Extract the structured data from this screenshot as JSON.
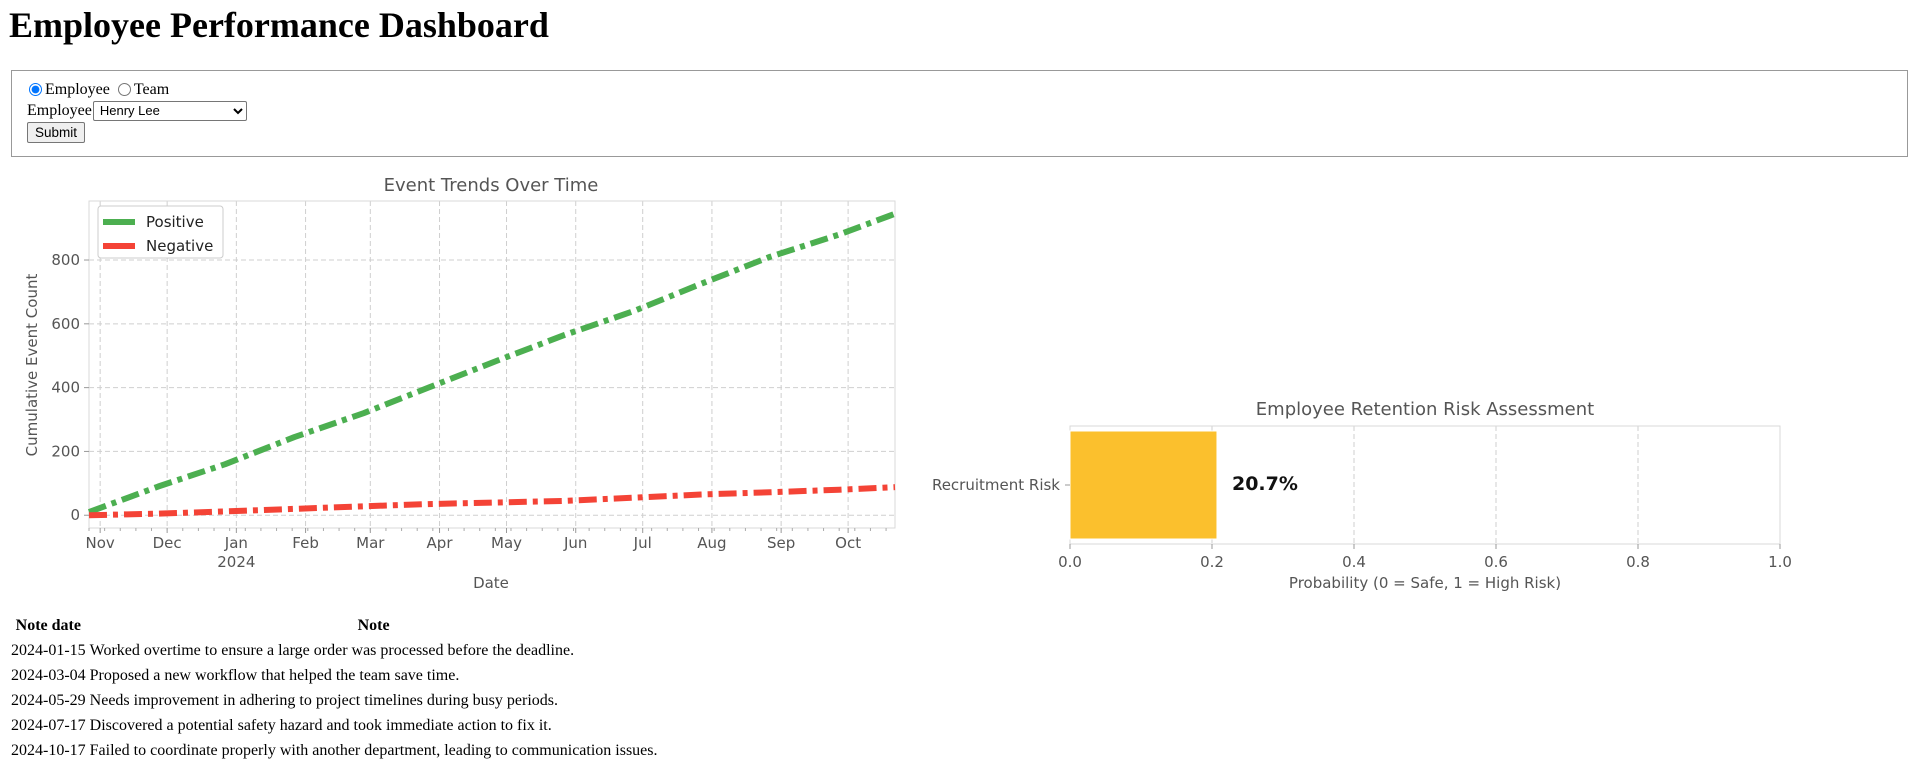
{
  "page": {
    "title": "Employee Performance Dashboard"
  },
  "form": {
    "mode_options": [
      {
        "label": "Employee",
        "checked": true
      },
      {
        "label": "Team",
        "checked": false
      }
    ],
    "employee_label": "Employee",
    "employee_selected": "Henry Lee",
    "submit_label": "Submit"
  },
  "trend_chart": {
    "title": "Event Trends Over Time",
    "xlabel": "Date",
    "ylabel": "Cumulative Event Count",
    "y_ticks": [
      0,
      200,
      400,
      600,
      800
    ],
    "x_ticks": [
      "Nov",
      "Dec",
      "Jan",
      "Feb",
      "Mar",
      "Apr",
      "May",
      "Jun",
      "Jul",
      "Aug",
      "Sep",
      "Oct"
    ],
    "x_year_label": "2024"
  },
  "risk_chart": {
    "title": "Employee Retention Risk Assessment",
    "xlabel": "Probability (0 = Safe, 1 = High Risk)",
    "category": "Recruitment Risk",
    "value_label": "20.7%",
    "x_ticks": [
      "0.0",
      "0.2",
      "0.4",
      "0.6",
      "0.8",
      "1.0"
    ]
  },
  "chart_data": [
    {
      "type": "line",
      "title": "Event Trends Over Time",
      "xlabel": "Date",
      "ylabel": "Cumulative Event Count",
      "xlim": [
        "2023-10-27",
        "2024-10-22"
      ],
      "ylim": [
        -40,
        985
      ],
      "grid": true,
      "legend": "top-left",
      "x": [
        "2023-10-27",
        "2023-11-27",
        "2023-12-27",
        "2024-01-27",
        "2024-02-27",
        "2024-03-27",
        "2024-04-27",
        "2024-05-27",
        "2024-06-27",
        "2024-07-27",
        "2024-08-27",
        "2024-09-27",
        "2024-10-22"
      ],
      "series": [
        {
          "name": "Positive",
          "color": "#4caf50",
          "values": [
            10,
            90,
            160,
            245,
            320,
            400,
            485,
            565,
            640,
            725,
            810,
            880,
            945
          ]
        },
        {
          "name": "Negative",
          "color": "#f44336",
          "values": [
            0,
            5,
            12,
            20,
            28,
            35,
            40,
            45,
            55,
            65,
            72,
            80,
            88
          ]
        }
      ]
    },
    {
      "type": "bar",
      "orientation": "horizontal",
      "title": "Employee Retention Risk Assessment",
      "xlabel": "Probability (0 = Safe, 1 = High Risk)",
      "categories": [
        "Recruitment Risk"
      ],
      "values": [
        0.207
      ],
      "xlim": [
        0,
        1
      ],
      "grid": true,
      "color": "#fbc02d"
    }
  ],
  "notes": {
    "headers": [
      "Note date",
      "Note"
    ],
    "rows": [
      [
        "2024-01-15",
        "Worked overtime to ensure a large order was processed before the deadline."
      ],
      [
        "2024-03-04",
        "Proposed a new workflow that helped the team save time."
      ],
      [
        "2024-05-29",
        "Needs improvement in adhering to project timelines during busy periods."
      ],
      [
        "2024-07-17",
        "Discovered a potential safety hazard and took immediate action to fix it."
      ],
      [
        "2024-10-17",
        "Failed to coordinate properly with another department, leading to communication issues."
      ]
    ]
  }
}
